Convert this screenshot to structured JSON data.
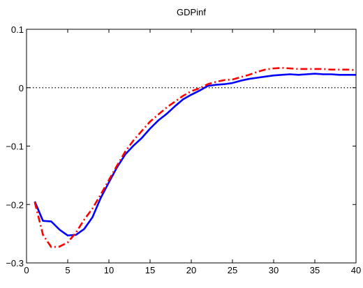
{
  "chart_data": {
    "type": "line",
    "title": "GDPinf",
    "xlabel": "",
    "ylabel": "",
    "xlim": [
      0,
      40
    ],
    "ylim": [
      -0.3,
      0.1
    ],
    "xticks": [
      0,
      5,
      10,
      15,
      20,
      25,
      30,
      35,
      40
    ],
    "yticks": [
      0.1,
      0,
      -0.1,
      -0.2,
      -0.3
    ],
    "ytick_labels": [
      "0.1",
      "0",
      "−0.1",
      "−0.2",
      "−0.3"
    ],
    "xtick_labels": [
      "0",
      "5",
      "10",
      "15",
      "20",
      "25",
      "30",
      "35",
      "40"
    ],
    "grid": false,
    "zero_line": {
      "y": 0,
      "style": "dotted",
      "color": "#000000"
    },
    "series": [
      {
        "style": "solid",
        "color": "#0000ff",
        "x": [
          1,
          2,
          3,
          4,
          5,
          6,
          7,
          8,
          9,
          10,
          11,
          12,
          13,
          14,
          15,
          16,
          17,
          18,
          19,
          20,
          21,
          22,
          23,
          24,
          25,
          26,
          27,
          28,
          29,
          30,
          31,
          32,
          33,
          34,
          35,
          36,
          37,
          38,
          39,
          40
        ],
        "y": [
          -0.195,
          -0.228,
          -0.229,
          -0.243,
          -0.253,
          -0.252,
          -0.242,
          -0.222,
          -0.189,
          -0.162,
          -0.136,
          -0.114,
          -0.099,
          -0.086,
          -0.07,
          -0.056,
          -0.045,
          -0.032,
          -0.02,
          -0.012,
          -0.005,
          0.003,
          0.005,
          0.006,
          0.008,
          0.012,
          0.015,
          0.017,
          0.019,
          0.021,
          0.022,
          0.023,
          0.022,
          0.023,
          0.024,
          0.023,
          0.023,
          0.022,
          0.022,
          0.022
        ]
      },
      {
        "style": "dashdot",
        "color": "#ff0000",
        "x": [
          1,
          2,
          3,
          4,
          5,
          6,
          7,
          8,
          9,
          10,
          11,
          12,
          13,
          14,
          15,
          16,
          17,
          18,
          19,
          20,
          21,
          22,
          23,
          24,
          25,
          26,
          27,
          28,
          29,
          30,
          31,
          32,
          33,
          34,
          35,
          36,
          37,
          38,
          39,
          40
        ],
        "y": [
          -0.196,
          -0.252,
          -0.273,
          -0.272,
          -0.265,
          -0.248,
          -0.226,
          -0.207,
          -0.183,
          -0.158,
          -0.133,
          -0.109,
          -0.09,
          -0.074,
          -0.058,
          -0.046,
          -0.034,
          -0.024,
          -0.014,
          -0.006,
          -0.001,
          0.006,
          0.01,
          0.013,
          0.014,
          0.018,
          0.022,
          0.027,
          0.031,
          0.033,
          0.034,
          0.033,
          0.032,
          0.032,
          0.032,
          0.032,
          0.031,
          0.031,
          0.031,
          0.03
        ]
      }
    ]
  }
}
